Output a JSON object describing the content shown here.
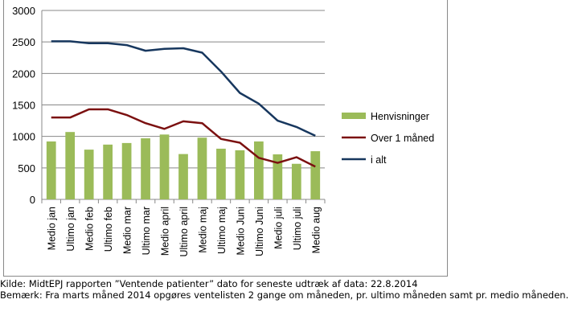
{
  "chart_data": {
    "type": "bar",
    "title": "",
    "xlabel": "",
    "ylabel": "",
    "ylim": [
      0,
      3000
    ],
    "yticks": [
      "0",
      "500",
      "1000",
      "1500",
      "2000",
      "2500",
      "3000"
    ],
    "grid": true,
    "legend_position": "right",
    "categories": [
      "Medio jan",
      "Ultimo jan",
      "Medio feb",
      "Ultimo feb",
      "Medio mar",
      "Ultimo mar",
      "Medio april",
      "Ultimo april",
      "Medio maj",
      "Ultimo maj",
      "Medio Juni",
      "Ultimo Juni",
      "Medio juli",
      "Ultimo juli",
      "Medio aug"
    ],
    "series": [
      {
        "name": "Henvisninger",
        "kind": "bar",
        "color": "#9bbb59",
        "values": [
          920,
          1070,
          790,
          870,
          895,
          970,
          1030,
          720,
          980,
          805,
          780,
          920,
          715,
          565,
          765
        ]
      },
      {
        "name": "Over 1 måned",
        "kind": "line",
        "color": "#7b1010",
        "values": [
          1300,
          1300,
          1430,
          1430,
          1340,
          1210,
          1120,
          1240,
          1210,
          960,
          900,
          660,
          580,
          670,
          520
        ]
      },
      {
        "name": "i alt",
        "kind": "line",
        "color": "#17375e",
        "values": [
          2510,
          2510,
          2480,
          2480,
          2450,
          2360,
          2390,
          2400,
          2330,
          2030,
          1690,
          1520,
          1250,
          1150,
          1010
        ]
      }
    ]
  },
  "notes": {
    "source": "Kilde: MidtEPJ rapporten ”Ventende patienter” dato for seneste udtræk af data: 22.8.2014",
    "remark": "Bemærk: Fra marts måned 2014 opgøres ventelisten 2 gange om måneden, pr. ultimo måneden samt pr. medio måneden."
  }
}
